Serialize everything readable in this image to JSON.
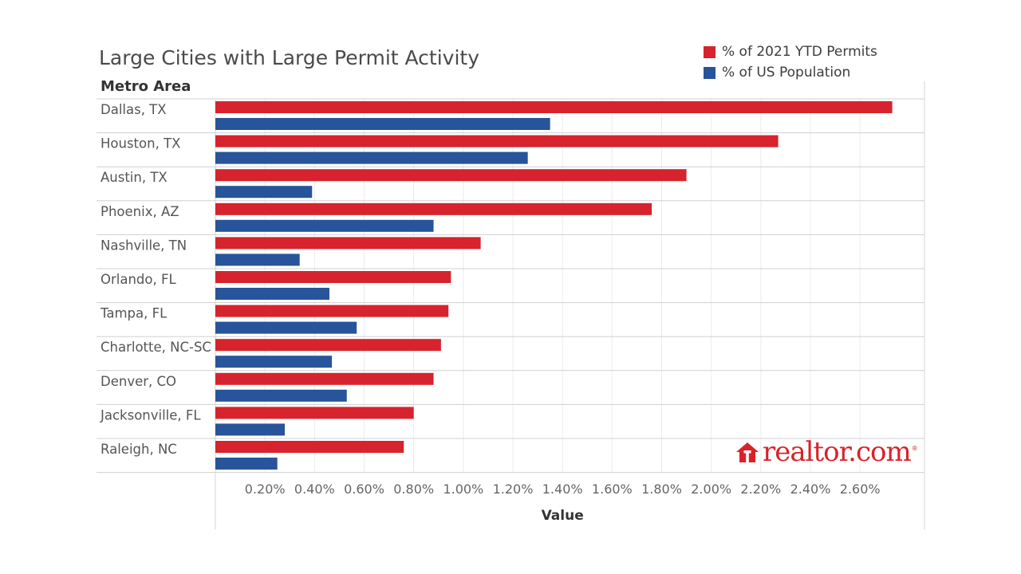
{
  "legend": {
    "permits_label": "% of 2021 YTD Permits",
    "population_label": "% of US Population"
  },
  "logo": {
    "text": "realtor.com",
    "trademark": "®"
  },
  "colors": {
    "permits": "#d7232d",
    "population": "#27549a"
  },
  "chart_data": {
    "type": "bar",
    "orientation": "horizontal",
    "title": "Large Cities with Large Permit Activity",
    "row_header": "Metro Area",
    "xlabel": "Value",
    "categories": [
      "Dallas, TX",
      "Houston, TX",
      "Austin, TX",
      "Phoenix, AZ",
      "Nashville, TN",
      "Orlando, FL",
      "Tampa, FL",
      "Charlotte, NC-SC",
      "Denver, CO",
      "Jacksonville, FL",
      "Raleigh, NC"
    ],
    "series": [
      {
        "name": "% of 2021 YTD Permits",
        "values": [
          2.73,
          2.27,
          1.9,
          1.76,
          1.07,
          0.95,
          0.94,
          0.91,
          0.88,
          0.8,
          0.76
        ]
      },
      {
        "name": "% of US Population",
        "values": [
          1.35,
          1.26,
          0.39,
          0.88,
          0.34,
          0.46,
          0.57,
          0.47,
          0.53,
          0.28,
          0.25
        ]
      }
    ],
    "xlim": [
      0,
      2.86
    ],
    "x_ticks": [
      0.2,
      0.4,
      0.6,
      0.8,
      1.0,
      1.2,
      1.4,
      1.6,
      1.8,
      2.0,
      2.2,
      2.4,
      2.6
    ],
    "x_tick_labels": [
      "0.20%",
      "0.40%",
      "0.60%",
      "0.80%",
      "1.00%",
      "1.20%",
      "1.40%",
      "1.60%",
      "1.80%",
      "2.00%",
      "2.20%",
      "2.40%",
      "2.60%"
    ],
    "grid": true,
    "legend_position": "top-right"
  }
}
